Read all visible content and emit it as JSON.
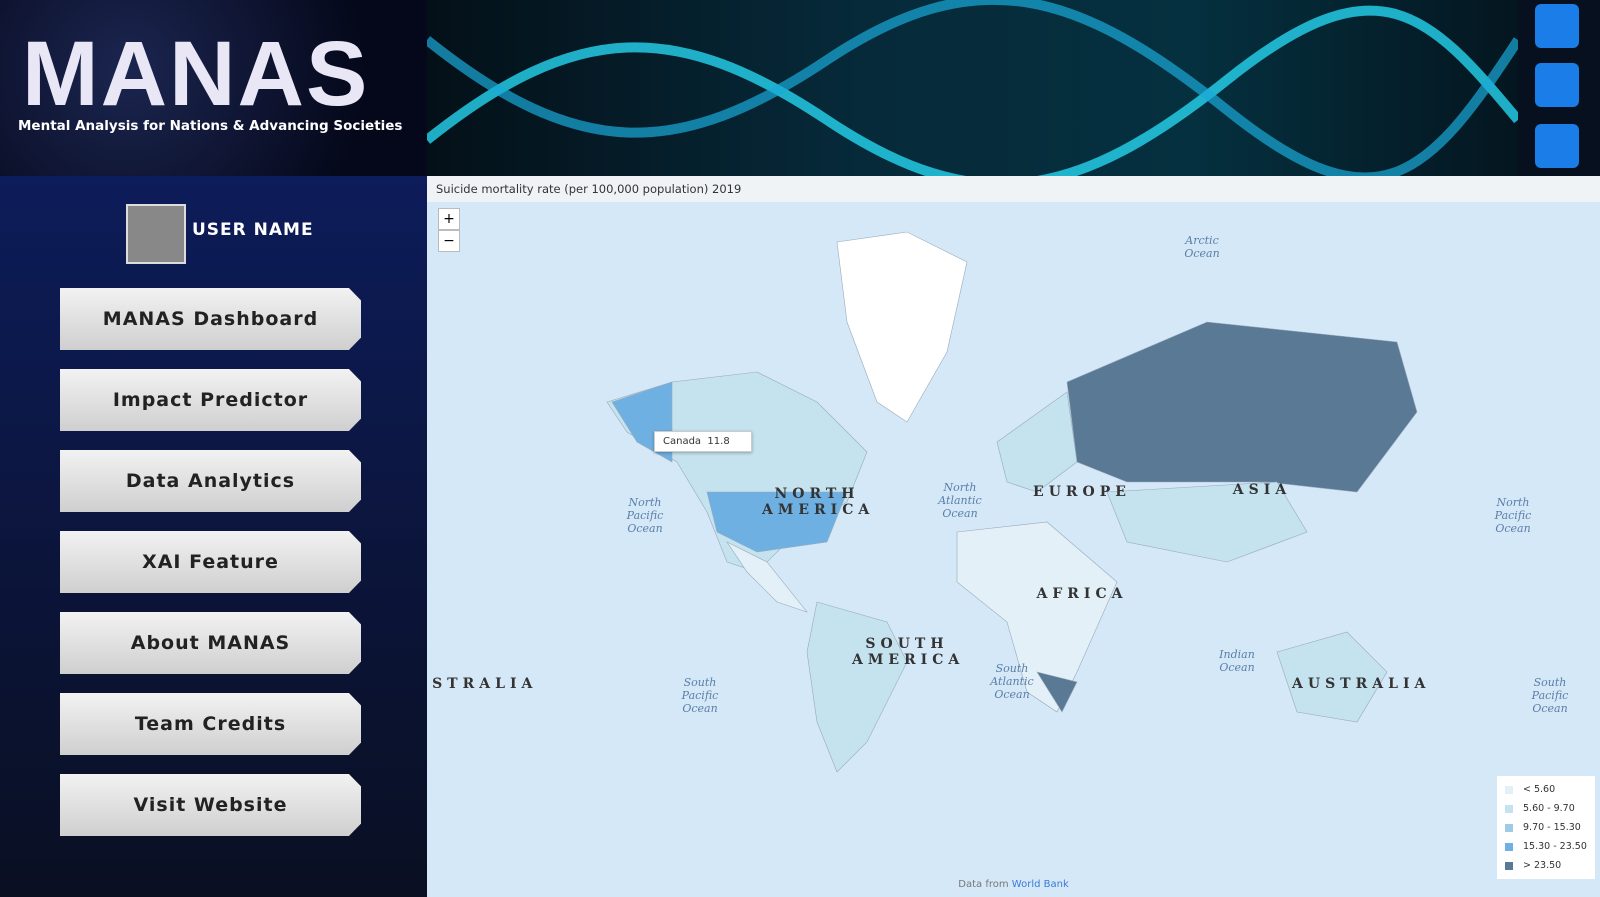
{
  "header": {
    "title": "MANAS",
    "subtitle": "Mental Analysis for Nations & Advancing Societies"
  },
  "sidebar": {
    "user_name": "USER NAME",
    "nav": [
      "MANAS Dashboard",
      "Impact Predictor",
      "Data Analytics",
      "XAI Feature",
      "About MANAS",
      "Team Credits",
      "Visit Website"
    ]
  },
  "map": {
    "title": "Suicide mortality rate (per 100,000 population) 2019",
    "zoom_in": "+",
    "zoom_out": "−",
    "tooltip": {
      "country": "Canada",
      "value": 11.8
    },
    "labels": [
      "Arctic Ocean",
      "North Pacific Ocean",
      "North Pacific Ocean",
      "North Atlantic Ocean",
      "South Pacific Ocean",
      "South Pacific Ocean",
      "South Atlantic Ocean",
      "Indian Ocean",
      "NORTH AMERICA",
      "EUROPE",
      "ASIA",
      "AFRICA",
      "SOUTH AMERICA",
      "AUSTRALIA",
      "AUSTRALIA"
    ],
    "legend": [
      {
        "label": "< 5.60",
        "color": "#e3f0f7"
      },
      {
        "label": "5.60 - 9.70",
        "color": "#c5e2ef"
      },
      {
        "label": "9.70 - 15.30",
        "color": "#9fcbe6"
      },
      {
        "label": "15.30 - 23.50",
        "color": "#6fb0e2"
      },
      {
        "label": "> 23.50",
        "color": "#5a7995"
      }
    ],
    "attribution": {
      "prefix": "Data from",
      "link": "World Bank"
    }
  }
}
